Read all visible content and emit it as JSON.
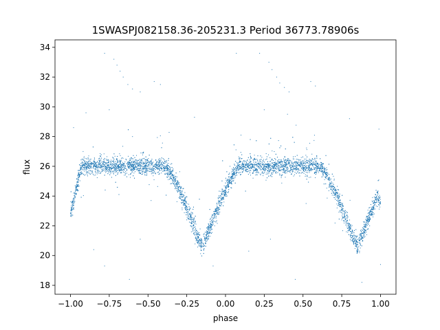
{
  "chart_data": {
    "type": "scatter",
    "title": "1SWASPJ082158.36-205231.3 Period 36773.78906s",
    "xlabel": "phase",
    "ylabel": "flux",
    "xlim": [
      -1.1,
      1.1
    ],
    "ylim": [
      17.4,
      34.5
    ],
    "x_ticks": [
      -1.0,
      -0.75,
      -0.5,
      -0.25,
      0.0,
      0.25,
      0.5,
      0.75,
      1.0
    ],
    "x_tick_labels": [
      "−1.00",
      "−0.75",
      "−0.50",
      "−0.25",
      "0.00",
      "0.25",
      "0.50",
      "0.75",
      "1.00"
    ],
    "y_ticks": [
      18,
      20,
      22,
      24,
      26,
      28,
      30,
      32,
      34
    ],
    "y_tick_labels": [
      "18",
      "20",
      "22",
      "24",
      "26",
      "28",
      "30",
      "32",
      "34"
    ],
    "grid": false,
    "legend": "none",
    "marker_color": "#1f77b4",
    "series": [
      {
        "phase_range": [
          -1.0,
          1.0
        ],
        "baseline_flux": 26.0,
        "eclipse_centers": [
          -0.15,
          0.85
        ],
        "eclipse_min_flux": 20.5,
        "edge_dip_flux": 22.8,
        "points": [
          [
            -1.0,
            22.9
          ],
          [
            -0.99,
            23.6
          ],
          [
            -0.98,
            24.2
          ],
          [
            -0.97,
            24.7
          ],
          [
            -0.95,
            25.3
          ],
          [
            -0.92,
            25.8
          ],
          [
            -0.88,
            26.0
          ],
          [
            -0.8,
            26.1
          ],
          [
            -0.7,
            26.0
          ],
          [
            -0.6,
            26.1
          ],
          [
            -0.5,
            26.0
          ],
          [
            -0.4,
            25.9
          ],
          [
            -0.35,
            25.2
          ],
          [
            -0.32,
            24.5
          ],
          [
            -0.3,
            23.9
          ],
          [
            -0.28,
            23.2
          ],
          [
            -0.25,
            22.4
          ],
          [
            -0.22,
            21.6
          ],
          [
            -0.19,
            21.0
          ],
          [
            -0.16,
            20.7
          ],
          [
            -0.13,
            20.8
          ],
          [
            -0.1,
            21.3
          ],
          [
            -0.07,
            22.0
          ],
          [
            -0.04,
            22.8
          ],
          [
            -0.01,
            23.6
          ],
          [
            0.02,
            24.3
          ],
          [
            0.05,
            25.0
          ],
          [
            0.08,
            25.6
          ],
          [
            0.12,
            26.0
          ],
          [
            0.2,
            26.1
          ],
          [
            0.3,
            26.0
          ],
          [
            0.4,
            26.1
          ],
          [
            0.5,
            26.0
          ],
          [
            0.6,
            25.9
          ],
          [
            0.65,
            25.2
          ],
          [
            0.68,
            24.5
          ],
          [
            0.7,
            23.9
          ],
          [
            0.72,
            23.2
          ],
          [
            0.75,
            22.4
          ],
          [
            0.78,
            21.6
          ],
          [
            0.81,
            21.0
          ],
          [
            0.84,
            20.7
          ],
          [
            0.87,
            20.8
          ],
          [
            0.9,
            21.3
          ],
          [
            0.93,
            22.0
          ],
          [
            0.96,
            22.8
          ],
          [
            0.99,
            23.4
          ],
          [
            1.0,
            23.6
          ],
          [
            -0.72,
            33.2
          ],
          [
            -0.7,
            32.8
          ],
          [
            -0.68,
            32.4
          ],
          [
            -0.66,
            32.0
          ],
          [
            -0.63,
            31.5
          ],
          [
            -0.6,
            31.2
          ],
          [
            -0.55,
            31.0
          ],
          [
            -0.46,
            31.7
          ],
          [
            -0.42,
            31.5
          ],
          [
            -0.78,
            33.6
          ],
          [
            0.22,
            33.6
          ],
          [
            0.28,
            33.0
          ],
          [
            0.3,
            32.5
          ],
          [
            0.33,
            32.0
          ],
          [
            0.35,
            31.6
          ],
          [
            0.38,
            31.3
          ],
          [
            0.41,
            31.0
          ],
          [
            0.55,
            31.7
          ],
          [
            0.58,
            31.4
          ],
          [
            0.07,
            33.6
          ],
          [
            -0.75,
            29.8
          ],
          [
            -0.9,
            29.6
          ],
          [
            0.25,
            29.8
          ],
          [
            0.4,
            29.5
          ],
          [
            -0.2,
            29.3
          ],
          [
            0.8,
            29.2
          ],
          [
            0.99,
            28.5
          ],
          [
            -0.98,
            28.6
          ],
          [
            -0.6,
            28.0
          ],
          [
            0.1,
            28.1
          ],
          [
            -0.85,
            20.4
          ],
          [
            0.15,
            20.3
          ],
          [
            -0.48,
            23.7
          ],
          [
            0.52,
            23.5
          ],
          [
            -0.55,
            21.1
          ],
          [
            -0.08,
            19.3
          ],
          [
            -0.78,
            19.3
          ],
          [
            0.45,
            18.4
          ],
          [
            -0.62,
            18.4
          ],
          [
            0.88,
            18.2
          ],
          [
            1.0,
            19.4
          ],
          [
            0.29,
            21.1
          ]
        ]
      }
    ]
  }
}
